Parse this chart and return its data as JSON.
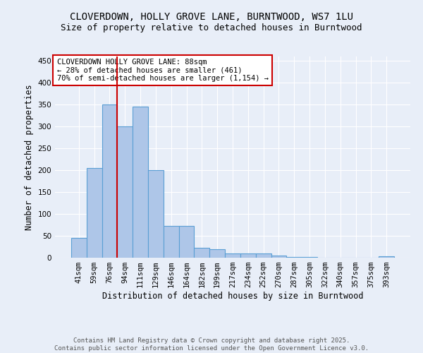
{
  "title1": "CLOVERDOWN, HOLLY GROVE LANE, BURNTWOOD, WS7 1LU",
  "title2": "Size of property relative to detached houses in Burntwood",
  "xlabel": "Distribution of detached houses by size in Burntwood",
  "ylabel": "Number of detached properties",
  "bar_labels": [
    "41sqm",
    "59sqm",
    "76sqm",
    "94sqm",
    "111sqm",
    "129sqm",
    "146sqm",
    "164sqm",
    "182sqm",
    "199sqm",
    "217sqm",
    "234sqm",
    "252sqm",
    "270sqm",
    "287sqm",
    "305sqm",
    "322sqm",
    "340sqm",
    "357sqm",
    "375sqm",
    "393sqm"
  ],
  "bar_values": [
    45,
    205,
    350,
    300,
    345,
    200,
    73,
    73,
    23,
    20,
    10,
    10,
    10,
    5,
    2,
    2,
    0,
    0,
    0,
    0,
    3
  ],
  "bar_color": "#aec6e8",
  "bar_edge_color": "#5a9fd4",
  "vline_color": "#cc0000",
  "annotation_text": "CLOVERDOWN HOLLY GROVE LANE: 88sqm\n← 28% of detached houses are smaller (461)\n70% of semi-detached houses are larger (1,154) →",
  "annotation_box_color": "#ffffff",
  "annotation_edge_color": "#cc0000",
  "ylim": [
    0,
    460
  ],
  "yticks": [
    0,
    50,
    100,
    150,
    200,
    250,
    300,
    350,
    400,
    450
  ],
  "footer_text": "Contains HM Land Registry data © Crown copyright and database right 2025.\nContains public sector information licensed under the Open Government Licence v3.0.",
  "background_color": "#e8eef8",
  "grid_color": "#ffffff",
  "title1_fontsize": 10,
  "title2_fontsize": 9,
  "xlabel_fontsize": 8.5,
  "ylabel_fontsize": 8.5,
  "tick_fontsize": 7.5,
  "annotation_fontsize": 7.5,
  "footer_fontsize": 6.5
}
